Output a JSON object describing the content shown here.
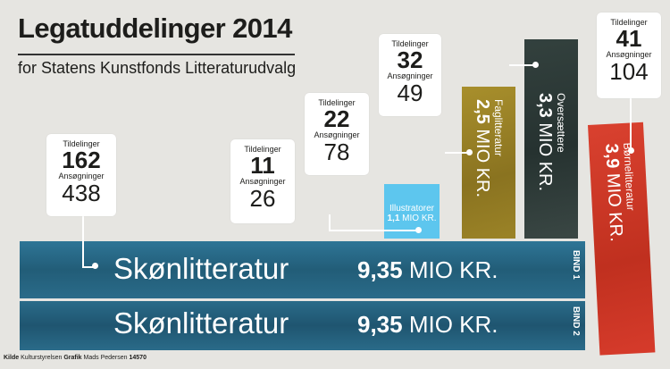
{
  "title": "Legatuddelinger 2014",
  "subtitle": "for Statens Kunstfonds Litteraturudvalg",
  "labels": {
    "tildelinger": "Tildelinger",
    "ansogninger": "Ansøgninger"
  },
  "chart_data": {
    "type": "bar",
    "unit": "MIO KR.",
    "categories": [
      "Skønlitteratur",
      "Skønlitteratur",
      "Illustratorer",
      "Faglitteratur",
      "Oversættere",
      "Børnelitteratur"
    ],
    "values": [
      9.35,
      9.35,
      1.1,
      2.5,
      3.3,
      3.9
    ],
    "value_labels": [
      "9,35",
      "9,35",
      "1,1",
      "2,5",
      "3,3",
      "3,9"
    ],
    "bind_labels": [
      "BIND 1",
      "BIND 2"
    ],
    "grants": {
      "tildelinger": [
        162,
        11,
        22,
        32,
        41
      ],
      "ansogninger": [
        438,
        26,
        78,
        49,
        104
      ]
    },
    "colors": {
      "skon": "#2b6f8c",
      "skon_dark": "#1e4a60",
      "illustratorer": "#5dc6ee",
      "faglitteratur": "#9a8226",
      "oversaettere": "#2f3b38",
      "bornelitteratur": "#d43a2a",
      "background": "#e6e5e1"
    }
  },
  "cards": [
    {
      "tildelinger": "162",
      "ansogninger": "438"
    },
    {
      "tildelinger": "11",
      "ansogninger": "26"
    },
    {
      "tildelinger": "22",
      "ansogninger": "78"
    },
    {
      "tildelinger": "32",
      "ansogninger": "49"
    },
    {
      "tildelinger": "41",
      "ansogninger": "104"
    }
  ],
  "bars": {
    "skon1": {
      "name": "Skønlitteratur",
      "value_num": "9,35",
      "unit": "MIO KR.",
      "bind": "BIND 1"
    },
    "skon2": {
      "name": "Skønlitteratur",
      "value_num": "9,35",
      "unit": "MIO KR.",
      "bind": "BIND 2"
    },
    "illustratorer": {
      "name": "Illustratorer",
      "value_num": "1,1",
      "unit": "MIO KR."
    },
    "faglitteratur": {
      "name": "Faglitteratur",
      "value_num": "2,5",
      "unit": "MIO KR."
    },
    "oversaettere": {
      "name": "Oversættere",
      "value_num": "3,3",
      "unit": "MIO KR."
    },
    "bornelitteratur": {
      "name": "Børnelitteratur",
      "value_num": "3,9",
      "unit": "MIO KR."
    }
  },
  "footer": {
    "kilde_label": "Kilde",
    "kilde_value": "Kulturstyrelsen",
    "grafik_label": "Grafik",
    "grafik_value": "Mads Pedersen",
    "id": "14570"
  }
}
